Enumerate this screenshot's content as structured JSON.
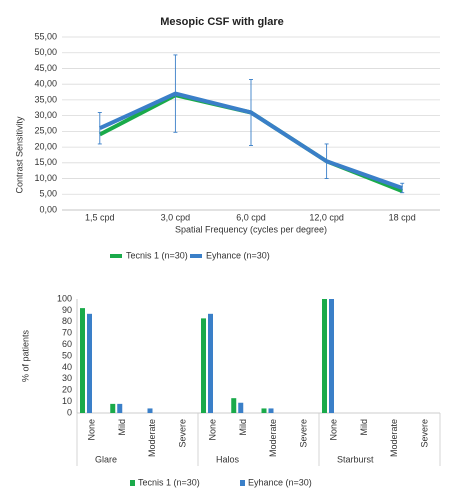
{
  "chart_data": [
    {
      "type": "line",
      "title": "Mesopic CSF with glare",
      "x_label": "Spatial Frequency (cycles per degree)",
      "y_label": "Contrast Sensitivity",
      "categories": [
        "1,5 cpd",
        "3,0 cpd",
        "6,0 cpd",
        "12,0 cpd",
        "18 cpd"
      ],
      "series": [
        {
          "name": "Tecnis 1 (n=30)",
          "color": "#1aaa4a",
          "values": [
            24,
            36.5,
            31,
            15.5,
            6
          ]
        },
        {
          "name": "Eyhance (n=30)",
          "color": "#3a7fc8",
          "values": [
            26,
            37,
            31,
            15.5,
            7
          ],
          "errors": [
            5,
            12.3,
            10.5,
            5.5,
            1.5
          ]
        }
      ],
      "ylim": [
        0,
        55
      ],
      "yticks": [
        {
          "value": 0,
          "label": "0,00"
        },
        {
          "value": 5,
          "label": "5,00"
        },
        {
          "value": 10,
          "label": "10,00"
        },
        {
          "value": 15,
          "label": "15,00"
        },
        {
          "value": 20,
          "label": "20,00"
        },
        {
          "value": 25,
          "label": "25,00"
        },
        {
          "value": 30,
          "label": "30,00"
        },
        {
          "value": 35,
          "label": "35,00"
        },
        {
          "value": 40,
          "label": "40,00"
        },
        {
          "value": 45,
          "label": "45,00"
        },
        {
          "value": 50,
          "label": "50,00"
        },
        {
          "value": 55,
          "label": "55,00"
        }
      ],
      "grid": true,
      "legend": "bottom"
    },
    {
      "type": "bar",
      "y_label": "% of patients",
      "groups": [
        "Glare",
        "Halos",
        "Starburst"
      ],
      "categories": [
        "None",
        "Mild",
        "Moderate",
        "Severe",
        "None",
        "Mild",
        "Moderate",
        "Severe",
        "None",
        "Mild",
        "Moderate",
        "Severe"
      ],
      "series": [
        {
          "name": "Tecnis 1 (n=30)",
          "color": "#1aaa4a",
          "values": [
            92,
            8,
            0,
            0,
            83,
            13,
            4,
            0,
            100,
            0,
            0,
            0
          ]
        },
        {
          "name": "Eyhance (n=30)",
          "color": "#3a7fc8",
          "values": [
            87,
            8,
            4,
            0,
            87,
            9,
            4,
            0,
            100,
            0,
            0,
            0
          ]
        }
      ],
      "ylim": [
        0,
        100
      ],
      "yticks": [
        0,
        10,
        20,
        30,
        40,
        50,
        60,
        70,
        80,
        90,
        100
      ],
      "grid": false,
      "legend": "bottom"
    }
  ]
}
